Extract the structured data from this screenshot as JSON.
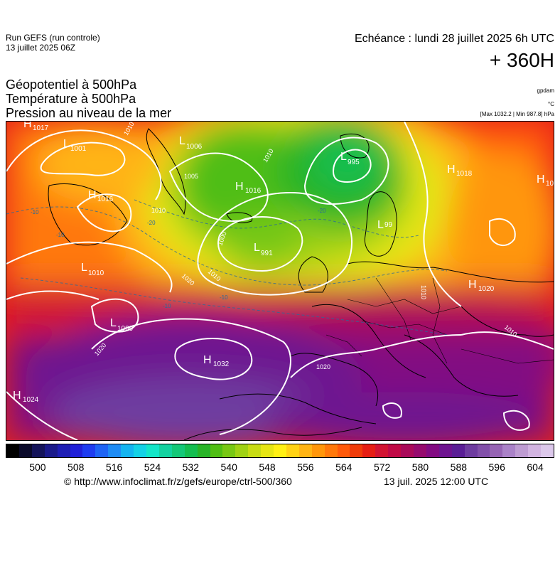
{
  "header": {
    "run_title": "Run GEFS (run controle)",
    "run_date": "13 juillet 2025 06Z",
    "echeance": "Echéance : lundi 28 juillet 2025 6h UTC",
    "horizon": "+ 360H"
  },
  "layers": {
    "geopotential": "Géopotentiel à 500hPa",
    "temperature": "Température à 500hPa",
    "pressure": "Pression au niveau de la mer"
  },
  "units": {
    "geopotential": "gpdam",
    "temperature": "°C",
    "pressure": "[Max 1032.2 | Min 987.8] hPa"
  },
  "colorbar": {
    "ticks": [
      "500",
      "508",
      "516",
      "524",
      "532",
      "540",
      "548",
      "556",
      "564",
      "572",
      "580",
      "588",
      "596",
      "604"
    ],
    "colors": [
      "#000000",
      "#0a0a2a",
      "#14145a",
      "#1a1a8a",
      "#1e1eb4",
      "#2020d8",
      "#1e3cf0",
      "#1e64f5",
      "#1e8cf5",
      "#14b4f0",
      "#14d2e6",
      "#14e6c8",
      "#14d2a0",
      "#14c878",
      "#14be50",
      "#28b428",
      "#50be14",
      "#78c814",
      "#a0d214",
      "#c8dc14",
      "#e6e614",
      "#fff014",
      "#ffd214",
      "#ffb414",
      "#ff960a",
      "#ff780a",
      "#ff5a0a",
      "#f03c0a",
      "#e61e14",
      "#d21432",
      "#c00a46",
      "#aa0a5a",
      "#960a6e",
      "#820a82",
      "#6e1490",
      "#5a1e96",
      "#6e3ca0",
      "#8250aa",
      "#9664b4",
      "#aa82c8",
      "#be9cd2",
      "#d2b4e1",
      "#dcc8eb"
    ]
  },
  "pressure_systems": [
    {
      "type": "H",
      "value": "1017"
    },
    {
      "type": "L",
      "value": "1001"
    },
    {
      "type": "L",
      "value": "1006"
    },
    {
      "type": "H",
      "value": "1016"
    },
    {
      "type": "H",
      "value": "1016"
    },
    {
      "type": "L",
      "value": "995"
    },
    {
      "type": "H",
      "value": "1018"
    },
    {
      "type": "H",
      "value": "10"
    },
    {
      "type": "L",
      "value": "991"
    },
    {
      "type": "L",
      "value": "99"
    },
    {
      "type": "L",
      "value": "1010"
    },
    {
      "type": "H",
      "value": "1020"
    },
    {
      "type": "L",
      "value": "1009"
    },
    {
      "type": "H",
      "value": "1032"
    },
    {
      "type": "H",
      "value": "1024"
    }
  ],
  "isobar_labels": [
    "1010",
    "1005",
    "1010",
    "1010",
    "1000",
    "1010",
    "1020",
    "1020",
    "1020",
    "1010",
    "1010"
  ],
  "temperature_labels": [
    "-10",
    "-20",
    "-20",
    "-10",
    "-10",
    "-10"
  ],
  "footer": {
    "credit": "© http://www.infoclimat.fr/z/gefs/europe/ctrl-500/360",
    "run_time": "13 juil. 2025 12:00 UTC"
  }
}
